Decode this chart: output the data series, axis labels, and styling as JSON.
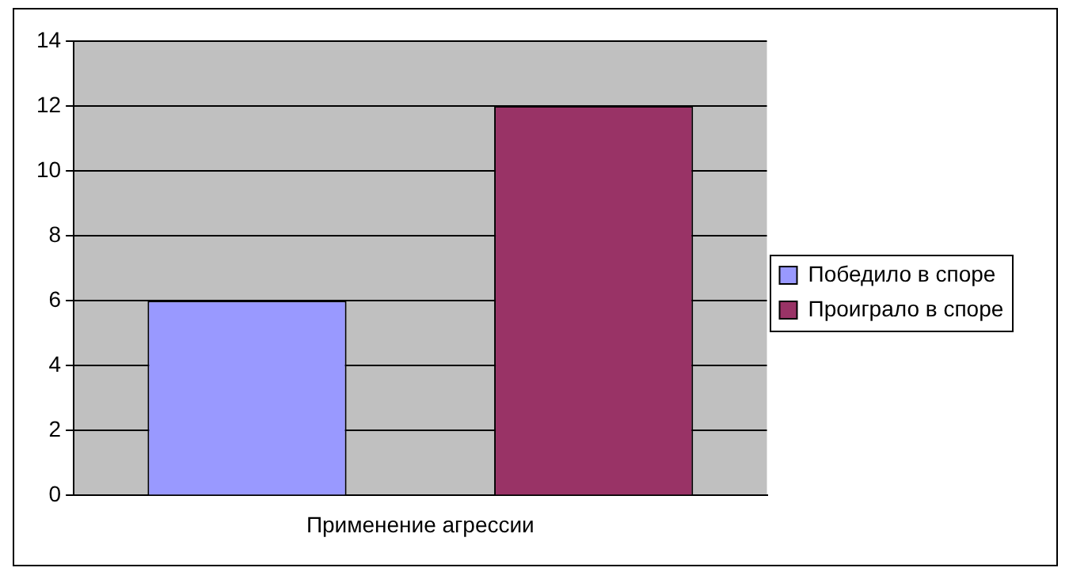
{
  "chart_data": {
    "type": "bar",
    "categories": [
      "Применение агрессии"
    ],
    "series": [
      {
        "name": "Победило в споре",
        "color": "#9999ff",
        "values": [
          6
        ]
      },
      {
        "name": "Проиграло в споре",
        "color": "#993366",
        "values": [
          12
        ]
      }
    ],
    "ylim": [
      0,
      14
    ],
    "yticks": [
      0,
      2,
      4,
      6,
      8,
      10,
      12,
      14
    ],
    "grid": "y",
    "legend": "right"
  }
}
